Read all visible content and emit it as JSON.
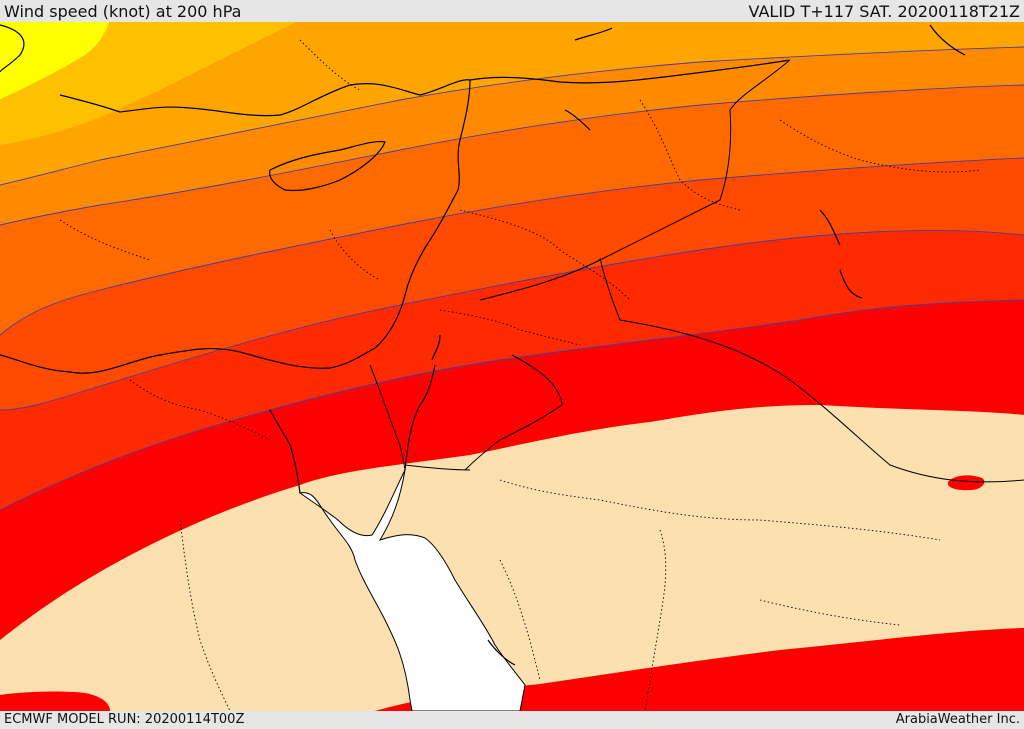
{
  "header": {
    "title": "Wind speed (knot) at 200 hPa",
    "valid": "VALID T+117 SAT. 20200118T21Z"
  },
  "footer": {
    "model_run": "ECMWF MODEL RUN: 20200114T00Z",
    "credit": "ArabiaWeather Inc."
  },
  "map": {
    "colors": {
      "calm": "#fde0af",
      "red": "#fe0000",
      "red_orange": "#ff2a00",
      "orange_red": "#ff4a00",
      "dark_orange": "#ff6a00",
      "orange": "#ff8a00",
      "amber": "#ffa500",
      "gold": "#ffc000",
      "yellow": "#ffff00",
      "sea": "#ffffff",
      "contour": "#4b3c9c",
      "coast": "#000000"
    }
  }
}
